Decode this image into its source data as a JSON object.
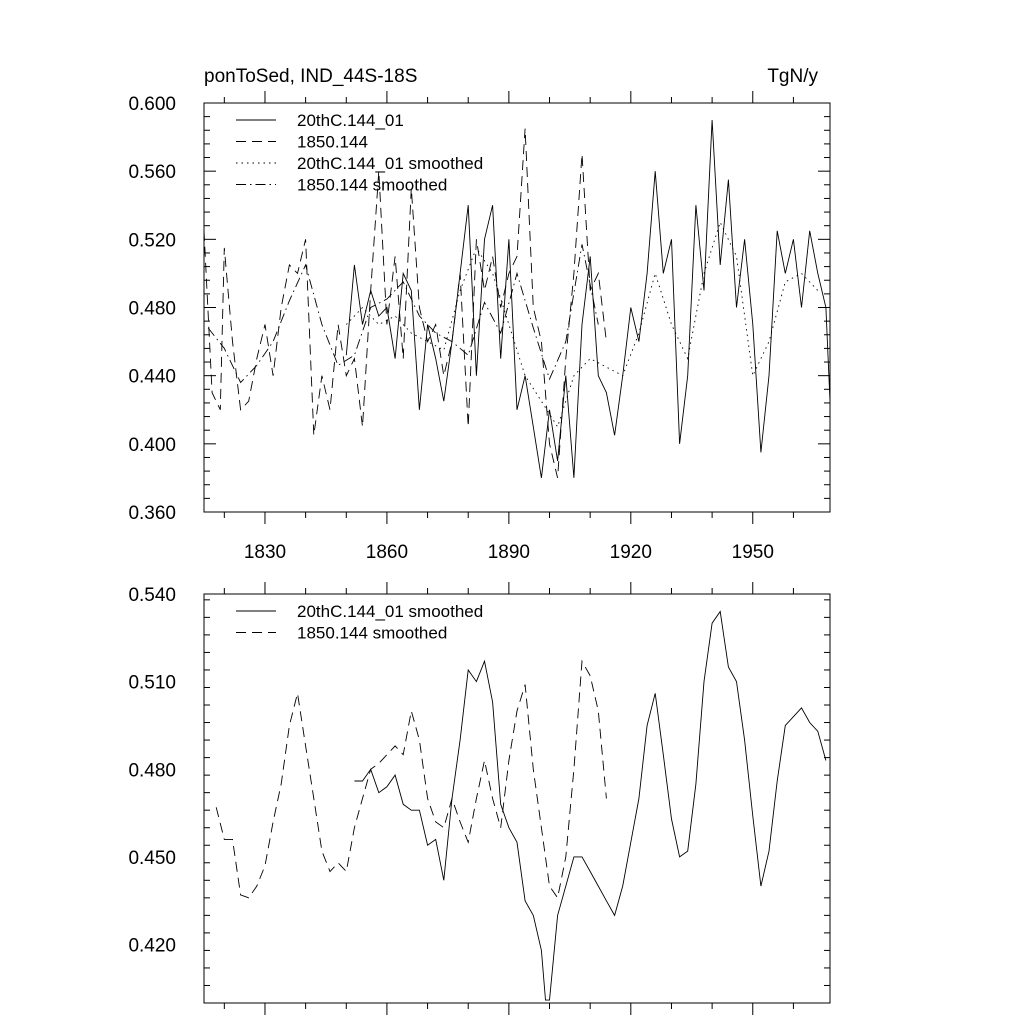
{
  "chart_data": [
    {
      "type": "line",
      "title": "ponToSed, IND_44S-18S",
      "units": "TgN/y",
      "xlim": [
        1815,
        1969
      ],
      "ylim": [
        0.36,
        0.6
      ],
      "xticks": [
        1830,
        1860,
        1890,
        1920,
        1950
      ],
      "xtick_labels": [
        "1830",
        "1860",
        "1890",
        "1920",
        "1950"
      ],
      "yticks": [
        0.36,
        0.4,
        0.44,
        0.48,
        0.52,
        0.56,
        0.6
      ],
      "ytick_labels": [
        "0.360",
        "0.400",
        "0.440",
        "0.480",
        "0.520",
        "0.560",
        "0.600"
      ],
      "legend_position": "top-left",
      "series": [
        {
          "name": "20thC.144_01",
          "dash": "solid",
          "x": [
            1850,
            1852,
            1854,
            1856,
            1858,
            1860,
            1862,
            1864,
            1866,
            1868,
            1870,
            1872,
            1874,
            1876,
            1878,
            1880,
            1882,
            1884,
            1886,
            1888,
            1890,
            1892,
            1894,
            1896,
            1898,
            1900,
            1902,
            1904,
            1906,
            1908,
            1910,
            1912,
            1914,
            1916,
            1918,
            1920,
            1922,
            1924,
            1926,
            1928,
            1930,
            1932,
            1934,
            1936,
            1938,
            1940,
            1942,
            1944,
            1946,
            1948,
            1950,
            1952,
            1954,
            1956,
            1958,
            1960,
            1962,
            1964,
            1966,
            1968,
            1969
          ],
          "values": [
            0.452,
            0.505,
            0.47,
            0.49,
            0.475,
            0.48,
            0.45,
            0.5,
            0.49,
            0.42,
            0.47,
            0.45,
            0.425,
            0.46,
            0.5,
            0.54,
            0.44,
            0.52,
            0.54,
            0.45,
            0.52,
            0.42,
            0.44,
            0.41,
            0.38,
            0.42,
            0.39,
            0.44,
            0.38,
            0.47,
            0.51,
            0.44,
            0.43,
            0.405,
            0.44,
            0.48,
            0.46,
            0.5,
            0.56,
            0.5,
            0.52,
            0.4,
            0.44,
            0.54,
            0.49,
            0.59,
            0.505,
            0.555,
            0.48,
            0.52,
            0.47,
            0.395,
            0.44,
            0.525,
            0.5,
            0.52,
            0.48,
            0.525,
            0.5,
            0.48,
            0.425
          ]
        },
        {
          "name": "1850.144",
          "dash": "dashed",
          "x": [
            1815,
            1817,
            1819,
            1820,
            1822,
            1824,
            1826,
            1828,
            1830,
            1832,
            1834,
            1836,
            1838,
            1840,
            1842,
            1844,
            1846,
            1848,
            1850,
            1852,
            1854,
            1856,
            1858,
            1860,
            1862,
            1864,
            1866,
            1868,
            1870,
            1872,
            1874,
            1876,
            1878,
            1880,
            1882,
            1884,
            1886,
            1888,
            1890,
            1892,
            1894,
            1896,
            1898,
            1900,
            1902,
            1904,
            1906,
            1908,
            1910,
            1912,
            1914
          ],
          "values": [
            0.525,
            0.43,
            0.42,
            0.515,
            0.46,
            0.42,
            0.425,
            0.45,
            0.47,
            0.44,
            0.48,
            0.505,
            0.5,
            0.52,
            0.405,
            0.44,
            0.42,
            0.47,
            0.44,
            0.45,
            0.41,
            0.49,
            0.56,
            0.47,
            0.51,
            0.45,
            0.55,
            0.48,
            0.46,
            0.47,
            0.44,
            0.46,
            0.5,
            0.41,
            0.52,
            0.49,
            0.51,
            0.48,
            0.5,
            0.51,
            0.585,
            0.48,
            0.46,
            0.4,
            0.38,
            0.45,
            0.5,
            0.57,
            0.49,
            0.5,
            0.46
          ]
        },
        {
          "name": "20thC.144_01 smoothed",
          "dash": "dotted",
          "x": [
            1850,
            1854,
            1858,
            1862,
            1866,
            1870,
            1874,
            1878,
            1882,
            1886,
            1890,
            1894,
            1898,
            1902,
            1906,
            1910,
            1914,
            1918,
            1922,
            1926,
            1930,
            1934,
            1938,
            1942,
            1946,
            1950,
            1954,
            1958,
            1962,
            1966
          ],
          "values": [
            0.47,
            0.48,
            0.47,
            0.475,
            0.465,
            0.46,
            0.455,
            0.49,
            0.515,
            0.5,
            0.47,
            0.44,
            0.425,
            0.41,
            0.44,
            0.45,
            0.445,
            0.44,
            0.465,
            0.5,
            0.47,
            0.45,
            0.5,
            0.53,
            0.51,
            0.44,
            0.46,
            0.495,
            0.5,
            0.49
          ]
        },
        {
          "name": "1850.144 smoothed",
          "dash": "dashdot",
          "x": [
            1816,
            1820,
            1824,
            1828,
            1832,
            1836,
            1840,
            1844,
            1848,
            1852,
            1856,
            1860,
            1864,
            1868,
            1872,
            1876,
            1880,
            1884,
            1888,
            1892,
            1896,
            1900,
            1904,
            1908,
            1912
          ],
          "values": [
            0.468,
            0.456,
            0.436,
            0.446,
            0.46,
            0.484,
            0.505,
            0.47,
            0.446,
            0.452,
            0.48,
            0.485,
            0.495,
            0.475,
            0.465,
            0.46,
            0.452,
            0.483,
            0.465,
            0.5,
            0.468,
            0.438,
            0.46,
            0.517,
            0.47
          ]
        }
      ]
    },
    {
      "type": "line",
      "title": "",
      "xlim": [
        1815,
        1969
      ],
      "ylim": [
        0.4,
        0.54
      ],
      "xticks": [
        1830,
        1860,
        1890,
        1920,
        1950
      ],
      "yticks": [
        0.42,
        0.45,
        0.48,
        0.51,
        0.54
      ],
      "ytick_labels": [
        "0.420",
        "0.450",
        "0.480",
        "0.510",
        "0.540"
      ],
      "legend_position": "top-left",
      "series": [
        {
          "name": "20thC.144_01 smoothed",
          "dash": "solid",
          "x": [
            1852,
            1854,
            1856,
            1858,
            1860,
            1862,
            1864,
            1866,
            1868,
            1870,
            1872,
            1874,
            1876,
            1878,
            1880,
            1882,
            1884,
            1886,
            1888,
            1890,
            1892,
            1894,
            1896,
            1898,
            1899,
            1900,
            1902,
            1904,
            1906,
            1908,
            1910,
            1912,
            1914,
            1916,
            1918,
            1920,
            1922,
            1924,
            1926,
            1928,
            1930,
            1932,
            1934,
            1936,
            1938,
            1940,
            1942,
            1944,
            1946,
            1948,
            1950,
            1952,
            1954,
            1956,
            1958,
            1960,
            1962,
            1964,
            1966,
            1968
          ],
          "values": [
            0.476,
            0.476,
            0.48,
            0.472,
            0.474,
            0.478,
            0.468,
            0.466,
            0.466,
            0.454,
            0.456,
            0.442,
            0.47,
            0.49,
            0.514,
            0.51,
            0.517,
            0.503,
            0.468,
            0.46,
            0.455,
            0.435,
            0.43,
            0.418,
            0.401,
            0.401,
            0.43,
            0.44,
            0.45,
            0.45,
            0.445,
            0.44,
            0.435,
            0.43,
            0.44,
            0.455,
            0.47,
            0.495,
            0.506,
            0.485,
            0.463,
            0.45,
            0.452,
            0.475,
            0.51,
            0.53,
            0.534,
            0.515,
            0.51,
            0.49,
            0.464,
            0.44,
            0.452,
            0.476,
            0.495,
            0.498,
            0.501,
            0.496,
            0.493,
            0.483
          ]
        },
        {
          "name": "1850.144 smoothed",
          "dash": "dashed",
          "x": [
            1818,
            1820,
            1822,
            1824,
            1826,
            1828,
            1830,
            1832,
            1834,
            1836,
            1838,
            1840,
            1842,
            1844,
            1846,
            1848,
            1850,
            1852,
            1854,
            1856,
            1858,
            1860,
            1862,
            1864,
            1866,
            1868,
            1870,
            1872,
            1874,
            1876,
            1878,
            1880,
            1882,
            1884,
            1886,
            1888,
            1890,
            1892,
            1894,
            1896,
            1898,
            1900,
            1902,
            1904,
            1906,
            1908,
            1910,
            1912,
            1914
          ],
          "values": [
            0.467,
            0.456,
            0.456,
            0.437,
            0.436,
            0.44,
            0.447,
            0.462,
            0.475,
            0.495,
            0.506,
            0.488,
            0.47,
            0.452,
            0.445,
            0.448,
            0.445,
            0.46,
            0.47,
            0.48,
            0.482,
            0.485,
            0.488,
            0.485,
            0.5,
            0.49,
            0.47,
            0.462,
            0.46,
            0.47,
            0.462,
            0.455,
            0.47,
            0.483,
            0.47,
            0.46,
            0.483,
            0.5,
            0.509,
            0.48,
            0.46,
            0.44,
            0.436,
            0.45,
            0.48,
            0.517,
            0.512,
            0.5,
            0.47
          ]
        }
      ]
    }
  ]
}
